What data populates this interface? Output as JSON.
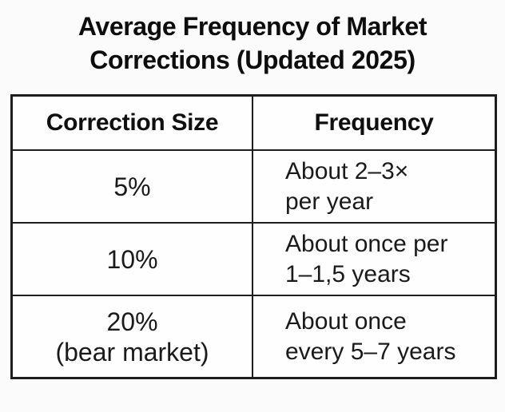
{
  "colors": {
    "background": "#fbfbfb",
    "cell_background": "#fefefe",
    "text": "#1a1a1a",
    "border": "#1d1d1d"
  },
  "title": {
    "lines": [
      "Average Frequency of Market",
      "Corrections (Updated 2025)"
    ]
  },
  "table": {
    "headers": {
      "correction_size": "Correction Size",
      "frequency": "Frequency"
    },
    "rows": [
      {
        "size_lines": [
          "5%"
        ],
        "freq_lines": [
          "About 2–3×",
          "per year"
        ]
      },
      {
        "size_lines": [
          "10%"
        ],
        "freq_lines": [
          "About once per",
          "1–1,5 years"
        ]
      },
      {
        "size_lines": [
          "20%",
          "(bear market)"
        ],
        "freq_lines": [
          "About once",
          "every 5–7 years"
        ]
      }
    ]
  },
  "chart_data": {
    "type": "table",
    "title": "Average Frequency of Market Corrections (Updated 2025)",
    "columns": [
      "Correction Size",
      "Frequency"
    ],
    "rows": [
      [
        "5%",
        "About 2–3× per year"
      ],
      [
        "10%",
        "About once per 1–1,5 years"
      ],
      [
        "20% (bear market)",
        "About once every 5–7 years"
      ]
    ]
  }
}
